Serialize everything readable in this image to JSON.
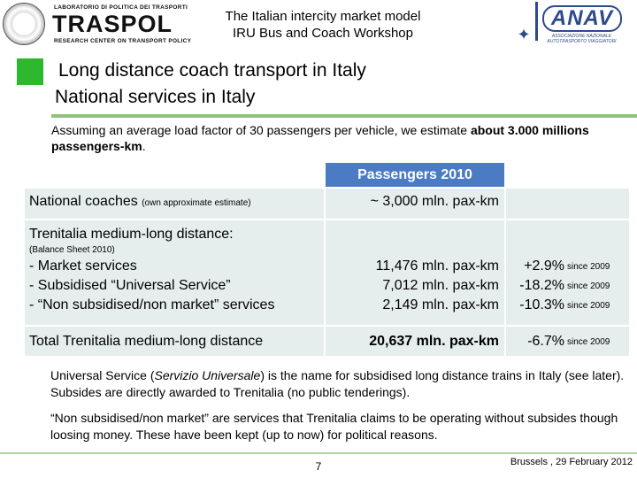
{
  "header": {
    "traspol_top": "LABORATORIO DI POLITICA DEI TRASPORTI",
    "traspol_name": "TRASPOL",
    "traspol_bottom": "RESEARCH CENTER ON TRANSPORT POLICY",
    "title": "The Italian intercity market model",
    "subtitle": "IRU Bus and Coach Workshop",
    "anav_name": "ANAV",
    "anav_desc": "ASSOCIAZIONE NAZIONALE AUTOTRASPORTO VIAGGIATORI"
  },
  "slide": {
    "title": "Long distance coach transport in Italy",
    "subtitle": "National services in Italy",
    "intro_prefix": "Assuming an average load factor of 30 passengers per vehicle, we estimate ",
    "intro_bold": "about 3.000 millions passengers-km",
    "intro_suffix": "."
  },
  "table": {
    "header": "Passengers 2010",
    "row_coaches": {
      "label": "National coaches",
      "note": "(own approximate estimate)",
      "value": "~ 3,000 mln. pax-km"
    },
    "row_trenitalia": {
      "label": "Trenitalia medium-long distance:",
      "note": "(Balance Sheet 2010)"
    },
    "items": [
      {
        "label": "- Market services",
        "value": "11,476 mln. pax-km",
        "change": "+2.9%",
        "since": "since 2009"
      },
      {
        "label": "- Subsidised “Universal Service”",
        "value": "7,012 mln. pax-km",
        "change": "-18.2%",
        "since": "since 2009"
      },
      {
        "label": "- “Non subsidised/non market” services",
        "value": "2,149 mln. pax-km",
        "change": "-10.3%",
        "since": "since 2009"
      }
    ],
    "total": {
      "label": "Total Trenitalia medium-long distance",
      "value": "20,637 mln. pax-km",
      "change": "-6.7%",
      "since": "since 2009"
    }
  },
  "notes": {
    "note1_a": "Universal Service (",
    "note1_italic": "Servizio Universale",
    "note1_b": ") is the name for subsidised long distance trains in Italy (see later). Subsides are directly awarded to Trenitalia (no public tenderings).",
    "note2": "“Non subsidised/non market” are services that Trenitalia claims to be operating without subsides though loosing money. These have been kept (up to now) for political reasons."
  },
  "footer": {
    "page": "7",
    "date": "Brussels , 29 February 2012"
  },
  "colors": {
    "accent_green": "#2eb82e",
    "rule_green": "#92c27b",
    "header_blue": "#4a7bc3",
    "cell_bg": "#e6eded",
    "anav_blue": "#2d4a8a"
  }
}
